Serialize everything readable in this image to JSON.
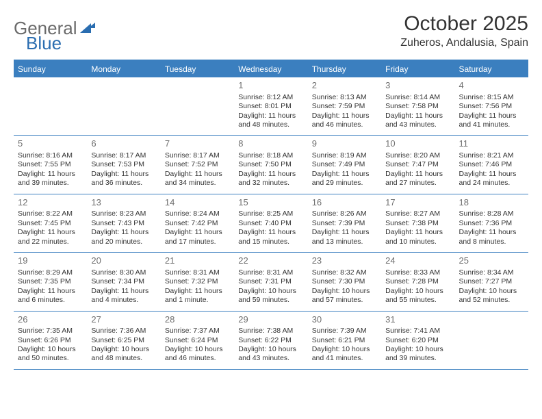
{
  "logo": {
    "text1": "General",
    "text2": "Blue"
  },
  "title": "October 2025",
  "location": "Zuheros, Andalusia, Spain",
  "colors": {
    "header_bg": "#3b7fbf",
    "header_text": "#ffffff",
    "logo_gray": "#6a6a6a",
    "logo_blue": "#2a6db0",
    "daynum": "#6f6f6f",
    "body_text": "#333333",
    "background": "#ffffff"
  },
  "dayHeaders": [
    "Sunday",
    "Monday",
    "Tuesday",
    "Wednesday",
    "Thursday",
    "Friday",
    "Saturday"
  ],
  "weeks": [
    [
      {
        "empty": true
      },
      {
        "empty": true
      },
      {
        "empty": true
      },
      {
        "n": "1",
        "sr": "8:12 AM",
        "ss": "8:01 PM",
        "dl": "11 hours and 48 minutes."
      },
      {
        "n": "2",
        "sr": "8:13 AM",
        "ss": "7:59 PM",
        "dl": "11 hours and 46 minutes."
      },
      {
        "n": "3",
        "sr": "8:14 AM",
        "ss": "7:58 PM",
        "dl": "11 hours and 43 minutes."
      },
      {
        "n": "4",
        "sr": "8:15 AM",
        "ss": "7:56 PM",
        "dl": "11 hours and 41 minutes."
      }
    ],
    [
      {
        "n": "5",
        "sr": "8:16 AM",
        "ss": "7:55 PM",
        "dl": "11 hours and 39 minutes."
      },
      {
        "n": "6",
        "sr": "8:17 AM",
        "ss": "7:53 PM",
        "dl": "11 hours and 36 minutes."
      },
      {
        "n": "7",
        "sr": "8:17 AM",
        "ss": "7:52 PM",
        "dl": "11 hours and 34 minutes."
      },
      {
        "n": "8",
        "sr": "8:18 AM",
        "ss": "7:50 PM",
        "dl": "11 hours and 32 minutes."
      },
      {
        "n": "9",
        "sr": "8:19 AM",
        "ss": "7:49 PM",
        "dl": "11 hours and 29 minutes."
      },
      {
        "n": "10",
        "sr": "8:20 AM",
        "ss": "7:47 PM",
        "dl": "11 hours and 27 minutes."
      },
      {
        "n": "11",
        "sr": "8:21 AM",
        "ss": "7:46 PM",
        "dl": "11 hours and 24 minutes."
      }
    ],
    [
      {
        "n": "12",
        "sr": "8:22 AM",
        "ss": "7:45 PM",
        "dl": "11 hours and 22 minutes."
      },
      {
        "n": "13",
        "sr": "8:23 AM",
        "ss": "7:43 PM",
        "dl": "11 hours and 20 minutes."
      },
      {
        "n": "14",
        "sr": "8:24 AM",
        "ss": "7:42 PM",
        "dl": "11 hours and 17 minutes."
      },
      {
        "n": "15",
        "sr": "8:25 AM",
        "ss": "7:40 PM",
        "dl": "11 hours and 15 minutes."
      },
      {
        "n": "16",
        "sr": "8:26 AM",
        "ss": "7:39 PM",
        "dl": "11 hours and 13 minutes."
      },
      {
        "n": "17",
        "sr": "8:27 AM",
        "ss": "7:38 PM",
        "dl": "11 hours and 10 minutes."
      },
      {
        "n": "18",
        "sr": "8:28 AM",
        "ss": "7:36 PM",
        "dl": "11 hours and 8 minutes."
      }
    ],
    [
      {
        "n": "19",
        "sr": "8:29 AM",
        "ss": "7:35 PM",
        "dl": "11 hours and 6 minutes."
      },
      {
        "n": "20",
        "sr": "8:30 AM",
        "ss": "7:34 PM",
        "dl": "11 hours and 4 minutes."
      },
      {
        "n": "21",
        "sr": "8:31 AM",
        "ss": "7:32 PM",
        "dl": "11 hours and 1 minute."
      },
      {
        "n": "22",
        "sr": "8:31 AM",
        "ss": "7:31 PM",
        "dl": "10 hours and 59 minutes."
      },
      {
        "n": "23",
        "sr": "8:32 AM",
        "ss": "7:30 PM",
        "dl": "10 hours and 57 minutes."
      },
      {
        "n": "24",
        "sr": "8:33 AM",
        "ss": "7:28 PM",
        "dl": "10 hours and 55 minutes."
      },
      {
        "n": "25",
        "sr": "8:34 AM",
        "ss": "7:27 PM",
        "dl": "10 hours and 52 minutes."
      }
    ],
    [
      {
        "n": "26",
        "sr": "7:35 AM",
        "ss": "6:26 PM",
        "dl": "10 hours and 50 minutes."
      },
      {
        "n": "27",
        "sr": "7:36 AM",
        "ss": "6:25 PM",
        "dl": "10 hours and 48 minutes."
      },
      {
        "n": "28",
        "sr": "7:37 AM",
        "ss": "6:24 PM",
        "dl": "10 hours and 46 minutes."
      },
      {
        "n": "29",
        "sr": "7:38 AM",
        "ss": "6:22 PM",
        "dl": "10 hours and 43 minutes."
      },
      {
        "n": "30",
        "sr": "7:39 AM",
        "ss": "6:21 PM",
        "dl": "10 hours and 41 minutes."
      },
      {
        "n": "31",
        "sr": "7:41 AM",
        "ss": "6:20 PM",
        "dl": "10 hours and 39 minutes."
      },
      {
        "empty": true
      }
    ]
  ],
  "labels": {
    "sunrise": "Sunrise:",
    "sunset": "Sunset:",
    "daylight": "Daylight:"
  }
}
